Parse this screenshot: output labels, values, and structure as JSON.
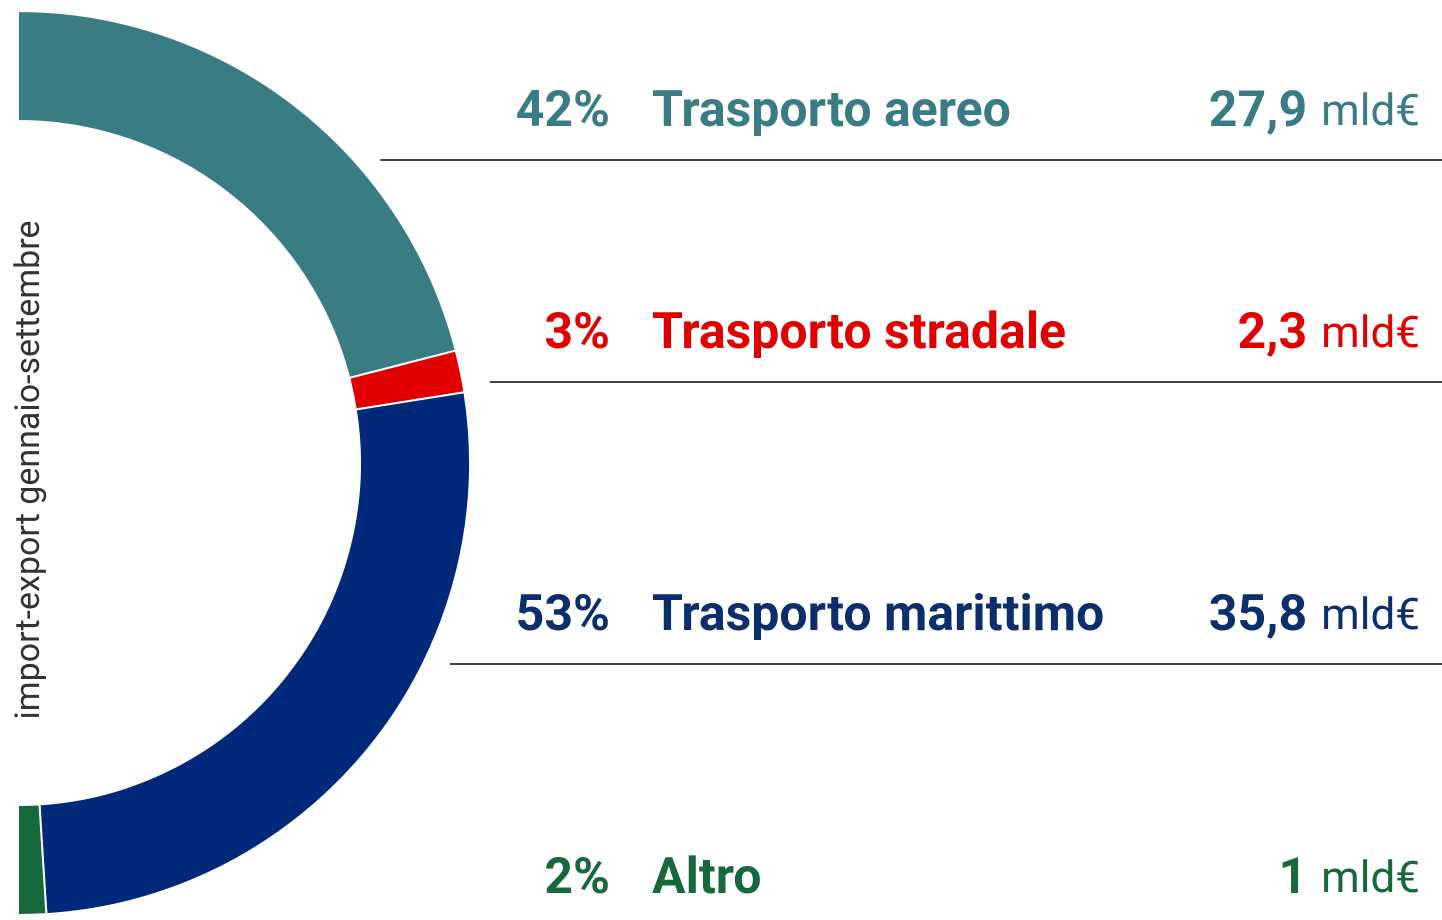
{
  "chart_data": {
    "type": "pie",
    "subtitle": "import-export gennaio-settembre",
    "categories": [
      "Trasporto aereo",
      "Trasporto stradale",
      "Trasporto marittimo",
      "Altro"
    ],
    "values": [
      42,
      3,
      53,
      2
    ],
    "value_labels": [
      "42%",
      "3%",
      "53%",
      "2%"
    ],
    "amounts": [
      27.9,
      2.3,
      35.8,
      1
    ],
    "amount_labels": [
      "27,9",
      "2,3",
      "35,8",
      "1"
    ],
    "unit": "mld€",
    "colors": [
      "#3a7c84",
      "#e00000",
      "#00297a",
      "#17683a"
    ],
    "text_colors": [
      "#3a7c84",
      "#e00000",
      "#0b2e6c",
      "#17683a"
    ]
  }
}
